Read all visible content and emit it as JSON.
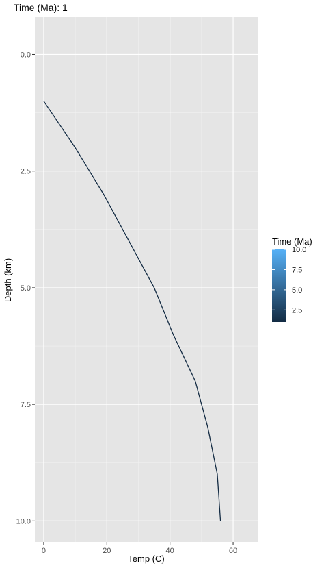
{
  "chart_data": {
    "type": "line",
    "title": "Time (Ma): 1",
    "xlabel": "Temp (C)",
    "ylabel": "Depth (km)",
    "xlim": [
      -2.8,
      68
    ],
    "ylim": [
      -0.8,
      10.45
    ],
    "y_reversed": true,
    "x_ticks": [
      0,
      20,
      40,
      60
    ],
    "x_tick_labels": [
      "0",
      "20",
      "40",
      "60"
    ],
    "y_ticks": [
      0,
      2.5,
      5,
      7.5,
      10
    ],
    "y_tick_labels": [
      "0.0",
      "2.5",
      "5.0",
      "7.5",
      "10.0"
    ],
    "grid": true,
    "panel_background": "#e5e5e5",
    "series": [
      {
        "time": 1,
        "color": "#132b43",
        "points": [
          {
            "x": 0,
            "y": 1.0
          },
          {
            "x": 10,
            "y": 2.0
          },
          {
            "x": 19,
            "y": 3.0
          },
          {
            "x": 27,
            "y": 4.0
          },
          {
            "x": 35,
            "y": 5.0
          },
          {
            "x": 41,
            "y": 6.0
          },
          {
            "x": 48,
            "y": 7.0
          },
          {
            "x": 52,
            "y": 8.0
          },
          {
            "x": 55,
            "y": 9.0
          },
          {
            "x": 56,
            "y": 10.0
          }
        ]
      }
    ],
    "legend": {
      "title": "Time (Ma)",
      "position": "right",
      "type": "colorbar",
      "range": [
        1,
        10
      ],
      "low_color": "#132b43",
      "high_color": "#56b1f7",
      "breaks": [
        2.5,
        5.0,
        7.5,
        10.0
      ],
      "break_labels": [
        "2.5",
        "5.0",
        "7.5",
        "10.0"
      ]
    }
  }
}
